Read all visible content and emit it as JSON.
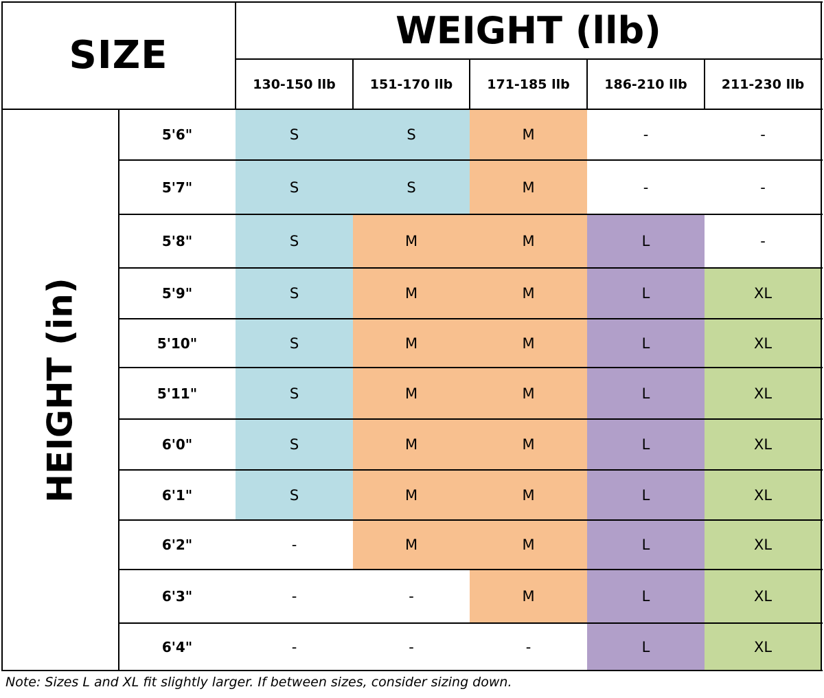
{
  "header": {
    "size_title": "SIZE",
    "weight_title": "WEIGHT (llb)",
    "height_title": "HEIGHT (in)",
    "weight_columns": [
      "130-150 llb",
      "151-170 llb",
      "171-185 llb",
      "186-210 llb",
      "211-230 llb"
    ]
  },
  "size_colors": {
    "S": "#b8dde5",
    "M": "#f8c08f",
    "L": "#b19fc9",
    "XL": "#c5d99b",
    "-": "#ffffff"
  },
  "rows": [
    {
      "height": "5'6\"",
      "sizes": [
        "S",
        "S",
        "M",
        "-",
        "-"
      ]
    },
    {
      "height": "5'7\"",
      "sizes": [
        "S",
        "S",
        "M",
        "-",
        "-"
      ]
    },
    {
      "height": "5'8\"",
      "sizes": [
        "S",
        "M",
        "M",
        "L",
        "-"
      ]
    },
    {
      "height": "5'9\"",
      "sizes": [
        "S",
        "M",
        "M",
        "L",
        "XL"
      ]
    },
    {
      "height": "5'10\"",
      "sizes": [
        "S",
        "M",
        "M",
        "L",
        "XL"
      ]
    },
    {
      "height": "5'11\"",
      "sizes": [
        "S",
        "M",
        "M",
        "L",
        "XL"
      ]
    },
    {
      "height": "6'0\"",
      "sizes": [
        "S",
        "M",
        "M",
        "L",
        "XL"
      ]
    },
    {
      "height": "6'1\"",
      "sizes": [
        "S",
        "M",
        "M",
        "L",
        "XL"
      ]
    },
    {
      "height": "6'2\"",
      "sizes": [
        "-",
        "M",
        "M",
        "L",
        "XL"
      ]
    },
    {
      "height": "6'3\"",
      "sizes": [
        "-",
        "-",
        "M",
        "L",
        "XL"
      ]
    },
    {
      "height": "6'4\"",
      "sizes": [
        "-",
        "-",
        "-",
        "L",
        "XL"
      ]
    }
  ],
  "note": "Note: Sizes L and XL fit slightly larger. If between sizes, consider sizing down."
}
